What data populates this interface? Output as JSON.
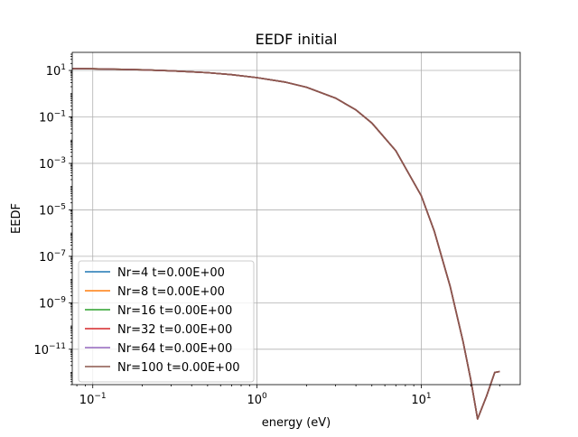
{
  "chart_data": {
    "type": "line",
    "title": "EEDF initial",
    "xlabel": "energy (eV)",
    "ylabel": "EEDF",
    "xscale": "log",
    "yscale": "log",
    "xlim": [
      0.075,
      40
    ],
    "ylim": [
      3e-13,
      60
    ],
    "grid": true,
    "legend_position": "lower-left",
    "x_ticks": [
      {
        "value": 0.1,
        "base": "10",
        "exp": "−1"
      },
      {
        "value": 1,
        "base": "10",
        "exp": "0"
      },
      {
        "value": 10,
        "base": "10",
        "exp": "1"
      }
    ],
    "y_ticks": [
      {
        "value": 10,
        "base": "10",
        "exp": "1"
      },
      {
        "value": 0.1,
        "base": "10",
        "exp": "−1"
      },
      {
        "value": 0.001,
        "base": "10",
        "exp": "−3"
      },
      {
        "value": 1e-05,
        "base": "10",
        "exp": "−5"
      },
      {
        "value": 1e-07,
        "base": "10",
        "exp": "−7"
      },
      {
        "value": 1e-09,
        "base": "10",
        "exp": "−9"
      },
      {
        "value": 1e-11,
        "base": "10",
        "exp": "−11"
      }
    ],
    "x": [
      0.075,
      0.1,
      0.15,
      0.2,
      0.3,
      0.5,
      0.7,
      1.0,
      1.5,
      2.0,
      3.0,
      4.0,
      5.0,
      7.0,
      10.0,
      12.0,
      15.0,
      18.0,
      20.0,
      22.0,
      25.0,
      28.0,
      30.0
    ],
    "series": [
      {
        "name": "Nr=4 t=0.00E+00",
        "color": "#1f77b4",
        "values": [
          12.0,
          11.8,
          11.2,
          10.7,
          9.7,
          8.0,
          6.6,
          4.9,
          3.1,
          1.9,
          0.65,
          0.2,
          0.055,
          0.0035,
          4e-05,
          1.2e-06,
          5e-09,
          2e-11,
          5e-13,
          1e-14,
          1e-13,
          1e-12,
          1.1e-12
        ]
      },
      {
        "name": "Nr=8 t=0.00E+00",
        "color": "#ff7f0e",
        "values": [
          12.0,
          11.8,
          11.2,
          10.7,
          9.7,
          8.0,
          6.6,
          4.9,
          3.1,
          1.9,
          0.65,
          0.2,
          0.055,
          0.0035,
          4e-05,
          1.2e-06,
          5e-09,
          2e-11,
          5e-13,
          1e-14,
          1e-13,
          1e-12,
          1.1e-12
        ]
      },
      {
        "name": "Nr=16 t=0.00E+00",
        "color": "#2ca02c",
        "values": [
          12.0,
          11.8,
          11.2,
          10.7,
          9.7,
          8.0,
          6.6,
          4.9,
          3.1,
          1.9,
          0.65,
          0.2,
          0.055,
          0.0035,
          4e-05,
          1.2e-06,
          5e-09,
          2e-11,
          5e-13,
          1e-14,
          1e-13,
          1e-12,
          1.1e-12
        ]
      },
      {
        "name": "Nr=32 t=0.00E+00",
        "color": "#d62728",
        "values": [
          12.0,
          11.8,
          11.2,
          10.7,
          9.7,
          8.0,
          6.6,
          4.9,
          3.1,
          1.9,
          0.65,
          0.2,
          0.055,
          0.0035,
          4e-05,
          1.2e-06,
          5e-09,
          2e-11,
          5e-13,
          1e-14,
          1e-13,
          1e-12,
          1.1e-12
        ]
      },
      {
        "name": "Nr=64 t=0.00E+00",
        "color": "#9467bd",
        "values": [
          12.0,
          11.8,
          11.2,
          10.7,
          9.7,
          8.0,
          6.6,
          4.9,
          3.1,
          1.9,
          0.65,
          0.2,
          0.055,
          0.0035,
          4e-05,
          1.2e-06,
          5e-09,
          2e-11,
          5e-13,
          1e-14,
          1e-13,
          1e-12,
          1.1e-12
        ]
      },
      {
        "name": "Nr=100 t=0.00E+00",
        "color": "#8c564b",
        "values": [
          12.0,
          11.8,
          11.2,
          10.7,
          9.7,
          8.0,
          6.6,
          4.9,
          3.1,
          1.9,
          0.65,
          0.2,
          0.055,
          0.0035,
          4e-05,
          1.2e-06,
          5e-09,
          2e-11,
          5e-13,
          1e-14,
          1e-13,
          1e-12,
          1.1e-12
        ]
      }
    ]
  }
}
